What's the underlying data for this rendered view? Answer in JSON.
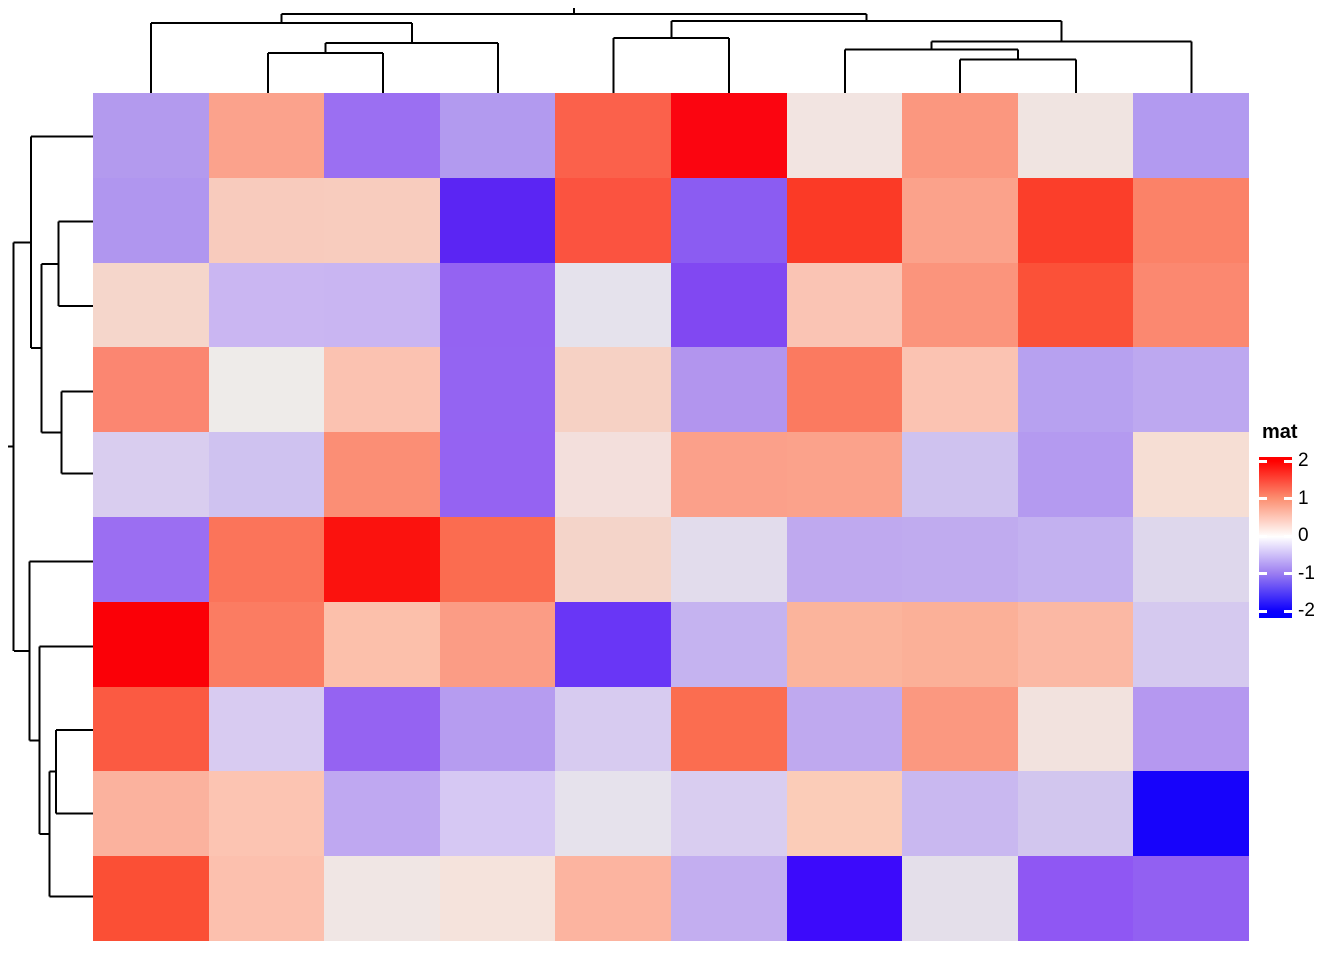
{
  "figure": {
    "description": "Clustered heatmap with row and column dendrograms",
    "background_color": "#ffffff",
    "dendrogram_line_color": "#000000"
  },
  "legend": {
    "title": "mat",
    "ticks": [
      {
        "label": "2",
        "value": 2
      },
      {
        "label": "1",
        "value": 1
      },
      {
        "label": "0",
        "value": 0
      },
      {
        "label": "-1",
        "value": -1
      },
      {
        "label": "-2",
        "value": -2
      }
    ],
    "gradient_stops": [
      [
        0,
        "#ff0000"
      ],
      [
        0.025,
        "#ff0000"
      ],
      [
        0.258,
        "#fc8f71"
      ],
      [
        0.495,
        "#ffffff"
      ],
      [
        0.722,
        "#9c7ef1"
      ],
      [
        0.956,
        "#0d00fd"
      ],
      [
        1,
        "#0000fe"
      ]
    ]
  },
  "chart_data": {
    "type": "heatmap",
    "title": "",
    "xlabel": "",
    "ylabel": "",
    "n_rows": 10,
    "n_cols": 10,
    "row_labels": [],
    "col_labels": [],
    "colorscale": {
      "min": -2,
      "max": 2,
      "low": "#0000fe",
      "mid": "#ffffff",
      "high": "#ff0000",
      "legend_title": "mat"
    },
    "cell_colors": [
      [
        "#b39aee",
        "#fba28c",
        "#9b6ff2",
        "#b29aef",
        "#fb614b",
        "#fb0510",
        "#f2e4e1",
        "#fb977f",
        "#f0e4e1",
        "#b29af0"
      ],
      [
        "#b096ef",
        "#f8cbbd",
        "#f8ccbe",
        "#5b25f3",
        "#fb5340",
        "#8b5cf2",
        "#fb3a26",
        "#fba28b",
        "#fb3e2a",
        "#fb8268"
      ],
      [
        "#f5d6cb",
        "#cab6f2",
        "#c9b5f2",
        "#9463f2",
        "#e5e2ec",
        "#8148f2",
        "#fac4b4",
        "#fb947c",
        "#fb5138",
        "#fb8870"
      ],
      [
        "#fb8671",
        "#eeebe9",
        "#fbc2b1",
        "#9464f2",
        "#f6d1c4",
        "#b295ee",
        "#fb7a60",
        "#fbc3b2",
        "#b7a1f0",
        "#bda8f0"
      ],
      [
        "#d9cdef",
        "#cfc2f0",
        "#fb8e75",
        "#9563f2",
        "#f3dfdc",
        "#fba08a",
        "#fba28b",
        "#cfc2ef",
        "#b49af0",
        "#f6ded4"
      ],
      [
        "#9b6ef2",
        "#fb745a",
        "#fb120e",
        "#fb6c50",
        "#f4d4c9",
        "#e2dcec",
        "#bfa9ef",
        "#c0abef",
        "#c3b1f0",
        "#ded7ec"
      ],
      [
        "#fb0007",
        "#fb7c62",
        "#fcc0ab",
        "#fb9c85",
        "#6936f6",
        "#c5b3f0",
        "#fbb49c",
        "#fbb098",
        "#fbb8a4",
        "#d5c9ef"
      ],
      [
        "#fb5a42",
        "#d8cbf1",
        "#9563f2",
        "#b69cf0",
        "#d7cbf0",
        "#fb6d50",
        "#bfa9ef",
        "#fb9880",
        "#f2e2de",
        "#b598f0"
      ],
      [
        "#fbb29e",
        "#fcc4b2",
        "#bfa8f1",
        "#d6c8f3",
        "#e6e2ec",
        "#d9cdf0",
        "#fbccb8",
        "#c9b8f0",
        "#d2c6ee",
        "#1703fb"
      ],
      [
        "#fb4f35",
        "#fcc0ae",
        "#f0e6e4",
        "#f5e3dc",
        "#fcb4a0",
        "#c3aef0",
        "#3c0afb",
        "#e4dfea",
        "#8f57f3",
        "#9260f2"
      ]
    ],
    "cell_values_approx": [
      [
        -0.7,
        0.7,
        -1.1,
        -0.7,
        1.4,
        2.0,
        0.15,
        0.8,
        0.15,
        -0.7
      ],
      [
        -0.75,
        0.35,
        0.35,
        -1.6,
        1.5,
        -1.2,
        1.6,
        0.6,
        1.6,
        0.9
      ],
      [
        0.3,
        -0.5,
        -0.5,
        -1.1,
        -0.15,
        -1.3,
        0.4,
        0.75,
        1.5,
        0.85
      ],
      [
        0.9,
        0.05,
        0.45,
        -1.1,
        0.3,
        -0.7,
        1.0,
        0.45,
        -0.65,
        -0.6
      ],
      [
        -0.3,
        -0.45,
        0.85,
        -1.15,
        0.2,
        0.75,
        0.7,
        -0.45,
        -0.7,
        0.2
      ],
      [
        -1.0,
        1.05,
        1.9,
        1.2,
        0.3,
        -0.2,
        -0.6,
        -0.55,
        -0.55,
        -0.25
      ],
      [
        2.0,
        1.0,
        0.45,
        0.7,
        -1.5,
        -0.5,
        0.55,
        0.55,
        0.5,
        -0.35
      ],
      [
        1.25,
        -0.35,
        -1.1,
        -0.6,
        -0.35,
        1.1,
        -0.6,
        0.75,
        0.1,
        -0.7
      ],
      [
        0.55,
        0.4,
        -0.6,
        -0.35,
        -0.15,
        -0.3,
        0.35,
        -0.45,
        -0.35,
        -2.0
      ],
      [
        1.35,
        0.45,
        0.1,
        0.1,
        0.5,
        -0.5,
        -1.9,
        -0.15,
        -1.2,
        -1.2
      ]
    ],
    "column_dendrogram": {
      "segments": [
        [
          151,
          23,
          151,
          93
        ],
        [
          268,
          53,
          268,
          93
        ],
        [
          383,
          53,
          383,
          93
        ],
        [
          498,
          43,
          498,
          93
        ],
        [
          613.5,
          38,
          613.5,
          93
        ],
        [
          729,
          38,
          729,
          93
        ],
        [
          845,
          49.7,
          845,
          93
        ],
        [
          960,
          59.7,
          960,
          93
        ],
        [
          1076,
          59.7,
          1076,
          93
        ],
        [
          1191.5,
          41.3,
          1191.5,
          93
        ],
        [
          268,
          53,
          383,
          53
        ],
        [
          325.5,
          43,
          325.5,
          53
        ],
        [
          325.5,
          43,
          498,
          43
        ],
        [
          411.8,
          23,
          411.8,
          43
        ],
        [
          151,
          23,
          411.8,
          23
        ],
        [
          281.4,
          14,
          281.4,
          23
        ],
        [
          613.5,
          38,
          729,
          38
        ],
        [
          671.3,
          21,
          671.3,
          38
        ],
        [
          960,
          59.7,
          1076,
          59.7
        ],
        [
          1018,
          49.7,
          1018,
          59.7
        ],
        [
          845,
          49.7,
          1018,
          49.7
        ],
        [
          931.4,
          41.3,
          931.4,
          49.7
        ],
        [
          931.4,
          41.3,
          1191.5,
          41.3
        ],
        [
          1061.4,
          21,
          1061.4,
          41.3
        ],
        [
          671.3,
          21,
          1061.4,
          21
        ],
        [
          866.3,
          14,
          866.3,
          21
        ],
        [
          281.4,
          14,
          866.3,
          14
        ],
        [
          573.9,
          8,
          573.9,
          14
        ]
      ]
    },
    "row_dendrogram": {
      "segments": [
        [
          31,
          136.7,
          93,
          136.7
        ],
        [
          58.3,
          221.7,
          93,
          221.7
        ],
        [
          58.3,
          306,
          93,
          306
        ],
        [
          61.7,
          391.7,
          93,
          391.7
        ],
        [
          61.7,
          473.3,
          93,
          473.3
        ],
        [
          29.3,
          561.7,
          93,
          561.7
        ],
        [
          39.3,
          646.7,
          93,
          646.7
        ],
        [
          56,
          730,
          93,
          730
        ],
        [
          56,
          813.3,
          93,
          813.3
        ],
        [
          49.3,
          896.7,
          93,
          896.7
        ],
        [
          58.3,
          221.7,
          58.3,
          306
        ],
        [
          41.7,
          263.8,
          58.3,
          263.8
        ],
        [
          61.7,
          391.7,
          61.7,
          473.3
        ],
        [
          41.7,
          432.5,
          61.7,
          432.5
        ],
        [
          41.7,
          263.8,
          41.7,
          432.5
        ],
        [
          31,
          348.2,
          41.7,
          348.2
        ],
        [
          31,
          136.7,
          31,
          348.2
        ],
        [
          13.3,
          242.4,
          31,
          242.4
        ],
        [
          56,
          730,
          56,
          813.3
        ],
        [
          49.3,
          771.7,
          56,
          771.7
        ],
        [
          49.3,
          771.7,
          49.3,
          896.7
        ],
        [
          39.3,
          834.2,
          49.3,
          834.2
        ],
        [
          39.3,
          646.7,
          39.3,
          834.2
        ],
        [
          29.3,
          740.5,
          39.3,
          740.5
        ],
        [
          29.3,
          561.7,
          29.3,
          740.5
        ],
        [
          14,
          651.1,
          29.3,
          651.1
        ],
        [
          13.3,
          242.4,
          13.3,
          651.1
        ],
        [
          8,
          446.7,
          13.3,
          446.7
        ]
      ]
    },
    "grid": false,
    "legend_position": "right"
  }
}
